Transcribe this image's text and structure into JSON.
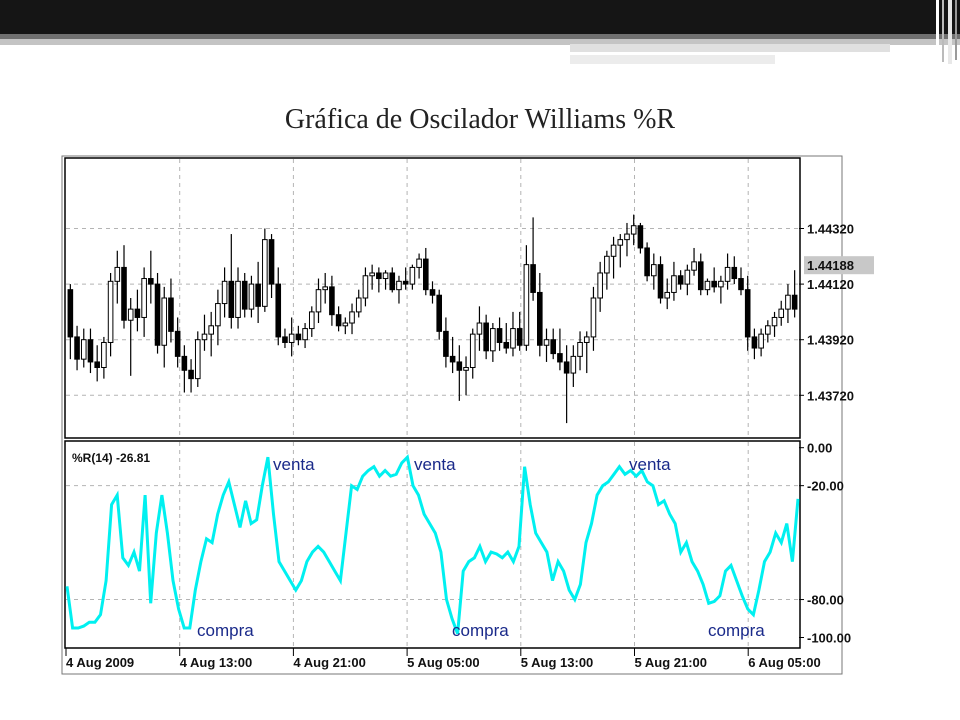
{
  "slide": {
    "title": "Gráfica de Oscilador Williams %R"
  },
  "chart_data": {
    "type": "candlestick+line",
    "price_axis": {
      "labels": [
        "1.44320",
        "1.44120",
        "1.43920",
        "1.43720"
      ],
      "values": [
        1.4432,
        1.4412,
        1.4392,
        1.4372
      ],
      "current_label": "1.44188",
      "current_value": 1.44188,
      "range": [
        1.4357,
        1.4457
      ]
    },
    "time_axis": {
      "labels": [
        "4 Aug 2009",
        "4 Aug 13:00",
        "4 Aug 21:00",
        "5 Aug 05:00",
        "5 Aug 13:00",
        "5 Aug 21:00",
        "6 Aug 05:00"
      ]
    },
    "candles": [
      [
        1.441,
        1.4412,
        1.4385,
        1.4393
      ],
      [
        1.4393,
        1.4397,
        1.4381,
        1.4385
      ],
      [
        1.4385,
        1.4396,
        1.4382,
        1.4392
      ],
      [
        1.4392,
        1.4396,
        1.438,
        1.4384
      ],
      [
        1.4384,
        1.439,
        1.4377,
        1.4382
      ],
      [
        1.4382,
        1.4393,
        1.4378,
        1.4391
      ],
      [
        1.4391,
        1.4416,
        1.4386,
        1.4413
      ],
      [
        1.4413,
        1.4424,
        1.4405,
        1.4418
      ],
      [
        1.4418,
        1.4426,
        1.4396,
        1.4399
      ],
      [
        1.4399,
        1.4407,
        1.4379,
        1.4403
      ],
      [
        1.4403,
        1.441,
        1.4395,
        1.44
      ],
      [
        1.44,
        1.4418,
        1.4393,
        1.4414
      ],
      [
        1.4414,
        1.4424,
        1.4405,
        1.4412
      ],
      [
        1.4412,
        1.4416,
        1.4387,
        1.439
      ],
      [
        1.439,
        1.4411,
        1.4382,
        1.4407
      ],
      [
        1.4407,
        1.4414,
        1.4391,
        1.4395
      ],
      [
        1.4395,
        1.44,
        1.4382,
        1.4386
      ],
      [
        1.4386,
        1.439,
        1.4373,
        1.4381
      ],
      [
        1.4381,
        1.4385,
        1.4373,
        1.4378
      ],
      [
        1.4378,
        1.4395,
        1.4375,
        1.4392
      ],
      [
        1.4392,
        1.4401,
        1.4388,
        1.4394
      ],
      [
        1.4394,
        1.4402,
        1.4386,
        1.4397
      ],
      [
        1.4397,
        1.441,
        1.439,
        1.4405
      ],
      [
        1.4405,
        1.4418,
        1.44,
        1.4413
      ],
      [
        1.4413,
        1.443,
        1.4396,
        1.44
      ],
      [
        1.44,
        1.4418,
        1.4396,
        1.4413
      ],
      [
        1.4413,
        1.4416,
        1.44,
        1.4403
      ],
      [
        1.4403,
        1.4415,
        1.44,
        1.4412
      ],
      [
        1.4412,
        1.442,
        1.4398,
        1.4404
      ],
      [
        1.4404,
        1.4432,
        1.4402,
        1.4428
      ],
      [
        1.4428,
        1.443,
        1.4407,
        1.4412
      ],
      [
        1.4412,
        1.4418,
        1.439,
        1.4393
      ],
      [
        1.4393,
        1.4396,
        1.4389,
        1.4391
      ],
      [
        1.4391,
        1.44,
        1.4386,
        1.4394
      ],
      [
        1.4394,
        1.4397,
        1.439,
        1.4392
      ],
      [
        1.4392,
        1.4398,
        1.4389,
        1.4396
      ],
      [
        1.4396,
        1.4404,
        1.4393,
        1.4402
      ],
      [
        1.4402,
        1.4414,
        1.4398,
        1.441
      ],
      [
        1.441,
        1.4416,
        1.4405,
        1.4411
      ],
      [
        1.4411,
        1.4415,
        1.4397,
        1.4401
      ],
      [
        1.4401,
        1.4404,
        1.4395,
        1.4397
      ],
      [
        1.4397,
        1.44,
        1.4394,
        1.4398
      ],
      [
        1.4398,
        1.4405,
        1.4394,
        1.4402
      ],
      [
        1.4402,
        1.441,
        1.44,
        1.4407
      ],
      [
        1.4407,
        1.4418,
        1.4404,
        1.4415
      ],
      [
        1.4415,
        1.4419,
        1.441,
        1.4416
      ],
      [
        1.4416,
        1.4418,
        1.4409,
        1.4414
      ],
      [
        1.4414,
        1.4417,
        1.441,
        1.4416
      ],
      [
        1.4416,
        1.4418,
        1.4409,
        1.441
      ],
      [
        1.441,
        1.4415,
        1.4405,
        1.4413
      ],
      [
        1.4413,
        1.4418,
        1.441,
        1.4412
      ],
      [
        1.4412,
        1.4419,
        1.441,
        1.4418
      ],
      [
        1.4418,
        1.4423,
        1.4414,
        1.4421
      ],
      [
        1.4421,
        1.4425,
        1.4408,
        1.441
      ],
      [
        1.441,
        1.4413,
        1.4405,
        1.4408
      ],
      [
        1.4408,
        1.441,
        1.4392,
        1.4395
      ],
      [
        1.4395,
        1.44,
        1.4382,
        1.4386
      ],
      [
        1.4386,
        1.4393,
        1.438,
        1.4384
      ],
      [
        1.4384,
        1.439,
        1.437,
        1.4381
      ],
      [
        1.4381,
        1.4386,
        1.4372,
        1.4382
      ],
      [
        1.4382,
        1.4396,
        1.4378,
        1.4394
      ],
      [
        1.4394,
        1.4404,
        1.4388,
        1.4398
      ],
      [
        1.4398,
        1.4401,
        1.4385,
        1.4388
      ],
      [
        1.4388,
        1.4398,
        1.4384,
        1.4396
      ],
      [
        1.4396,
        1.44,
        1.4388,
        1.4391
      ],
      [
        1.4391,
        1.4398,
        1.4387,
        1.4389
      ],
      [
        1.4389,
        1.4402,
        1.4386,
        1.4396
      ],
      [
        1.4396,
        1.4402,
        1.4388,
        1.439
      ],
      [
        1.439,
        1.4426,
        1.4388,
        1.4419
      ],
      [
        1.4419,
        1.4436,
        1.4406,
        1.4409
      ],
      [
        1.4409,
        1.4416,
        1.4386,
        1.439
      ],
      [
        1.439,
        1.4396,
        1.4384,
        1.4392
      ],
      [
        1.4392,
        1.4396,
        1.4385,
        1.4387
      ],
      [
        1.4387,
        1.4396,
        1.4381,
        1.4384
      ],
      [
        1.4384,
        1.439,
        1.4362,
        1.438
      ],
      [
        1.438,
        1.439,
        1.4375,
        1.4386
      ],
      [
        1.4386,
        1.4395,
        1.4381,
        1.4391
      ],
      [
        1.4391,
        1.4395,
        1.438,
        1.4393
      ],
      [
        1.4393,
        1.4411,
        1.4388,
        1.4407
      ],
      [
        1.4407,
        1.442,
        1.4402,
        1.4416
      ],
      [
        1.4416,
        1.4424,
        1.441,
        1.4422
      ],
      [
        1.4422,
        1.4429,
        1.4414,
        1.4426
      ],
      [
        1.4426,
        1.443,
        1.4418,
        1.4428
      ],
      [
        1.4428,
        1.4434,
        1.4422,
        1.443
      ],
      [
        1.443,
        1.4437,
        1.4426,
        1.4433
      ],
      [
        1.4433,
        1.4434,
        1.4423,
        1.4425
      ],
      [
        1.4425,
        1.4427,
        1.4413,
        1.4415
      ],
      [
        1.4415,
        1.4423,
        1.441,
        1.4419
      ],
      [
        1.4419,
        1.4422,
        1.4405,
        1.4407
      ],
      [
        1.4407,
        1.4414,
        1.4403,
        1.4409
      ],
      [
        1.4409,
        1.442,
        1.4406,
        1.4415
      ],
      [
        1.4415,
        1.4417,
        1.441,
        1.4412
      ],
      [
        1.4412,
        1.4419,
        1.4408,
        1.4417
      ],
      [
        1.4417,
        1.4425,
        1.4415,
        1.442
      ],
      [
        1.442,
        1.4423,
        1.4408,
        1.441
      ],
      [
        1.441,
        1.4414,
        1.4408,
        1.4413
      ],
      [
        1.4413,
        1.4418,
        1.4409,
        1.4411
      ],
      [
        1.4411,
        1.4415,
        1.4405,
        1.4413
      ],
      [
        1.4413,
        1.4423,
        1.441,
        1.4418
      ],
      [
        1.4418,
        1.4422,
        1.4412,
        1.4414
      ],
      [
        1.4414,
        1.4418,
        1.4408,
        1.441
      ],
      [
        1.441,
        1.4415,
        1.4388,
        1.4393
      ],
      [
        1.4393,
        1.4396,
        1.4385,
        1.4389
      ],
      [
        1.4389,
        1.4396,
        1.4386,
        1.4394
      ],
      [
        1.4394,
        1.4399,
        1.4391,
        1.4397
      ],
      [
        1.4397,
        1.4402,
        1.4393,
        1.44
      ],
      [
        1.44,
        1.4406,
        1.4397,
        1.4403
      ],
      [
        1.4403,
        1.4412,
        1.4398,
        1.4408
      ],
      [
        1.4408,
        1.4417,
        1.44,
        1.4403
      ]
    ],
    "oscillator": {
      "name": "%R(14)",
      "value_label": "-26.81",
      "range": [
        -105,
        3
      ],
      "levels": [
        -20,
        -80
      ],
      "tick_labels": [
        "0.00",
        "-20.00",
        "-80.00",
        "-100.00"
      ],
      "tick_values": [
        0,
        -20,
        -80,
        -100
      ],
      "values": [
        -73,
        -95,
        -95,
        -94,
        -92,
        -92,
        -88,
        -70,
        -30,
        -25,
        -58,
        -62,
        -55,
        -65,
        -25,
        -82,
        -45,
        -25,
        -45,
        -70,
        -85,
        -95,
        -95,
        -75,
        -60,
        -48,
        -50,
        -35,
        -25,
        -18,
        -30,
        -42,
        -28,
        -40,
        -38,
        -20,
        -5,
        -35,
        -60,
        -65,
        -70,
        -75,
        -70,
        -60,
        -55,
        -52,
        -55,
        -60,
        -65,
        -70,
        -45,
        -20,
        -22,
        -15,
        -12,
        -10,
        -15,
        -12,
        -15,
        -14,
        -8,
        -5,
        -20,
        -25,
        -35,
        -40,
        -45,
        -55,
        -80,
        -90,
        -98,
        -65,
        -60,
        -58,
        -52,
        -60,
        -55,
        -56,
        -58,
        -55,
        -60,
        -52,
        -10,
        -30,
        -45,
        -50,
        -55,
        -70,
        -60,
        -65,
        -75,
        -80,
        -72,
        -50,
        -40,
        -25,
        -20,
        -18,
        -14,
        -10,
        -14,
        -12,
        -15,
        -12,
        -18,
        -20,
        -30,
        -28,
        -35,
        -40,
        -55,
        -50,
        -60,
        -65,
        -72,
        -82,
        -81,
        -78,
        -65,
        -62,
        -70,
        -78,
        -85,
        -88,
        -75,
        -60,
        -55,
        -45,
        -50,
        -40,
        -60,
        -27
      ]
    },
    "annotations": {
      "sell": [
        "venta",
        "venta",
        "venta"
      ],
      "buy": [
        "compra",
        "compra",
        "compra"
      ]
    },
    "colors": {
      "oscillator_line": "#00f0f0",
      "grid": "#b4b4b4",
      "annotation_text": "#1a2a8a",
      "current_price_bg": "#c8c8c8"
    }
  }
}
